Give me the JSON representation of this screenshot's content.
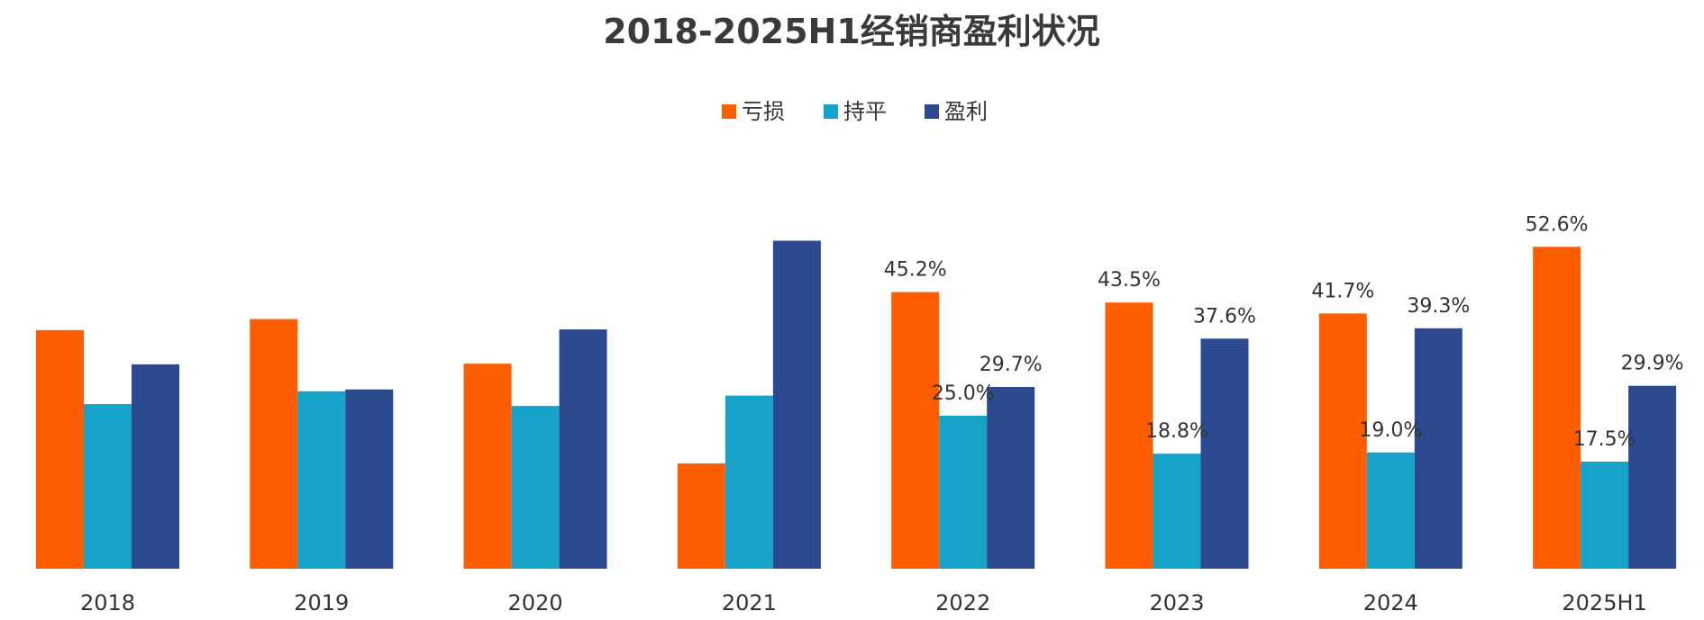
{
  "chart_data": {
    "type": "bar",
    "title": "2018-2025H1经销商盈利状况",
    "xlabel": "",
    "ylabel": "",
    "ylim": [
      0,
      60
    ],
    "grid": false,
    "legend_position": "top-center",
    "categories": [
      "2018",
      "2019",
      "2020",
      "2021",
      "2022",
      "2023",
      "2024",
      "2025H1"
    ],
    "series": [
      {
        "name": "亏损",
        "color": "#FF5E00",
        "values": [
          39.0,
          40.8,
          33.5,
          17.2,
          45.2,
          43.5,
          41.7,
          52.6
        ],
        "labels": [
          "",
          "",
          "",
          "",
          "45.2%",
          "43.5%",
          "41.7%",
          "52.6%"
        ]
      },
      {
        "name": "持平",
        "color": "#17A2C9",
        "values": [
          26.9,
          29.0,
          26.6,
          28.3,
          25.0,
          18.8,
          19.0,
          17.5
        ],
        "labels": [
          "",
          "",
          "",
          "",
          "25.0%",
          "18.8%",
          "19.0%",
          "17.5%"
        ]
      },
      {
        "name": "盈利",
        "color": "#2B4A90",
        "values": [
          33.4,
          29.3,
          39.1,
          53.6,
          29.7,
          37.6,
          39.3,
          29.9
        ],
        "labels": [
          "",
          "",
          "",
          "",
          "29.7%",
          "37.6%",
          "39.3%",
          "29.9%"
        ]
      }
    ]
  }
}
